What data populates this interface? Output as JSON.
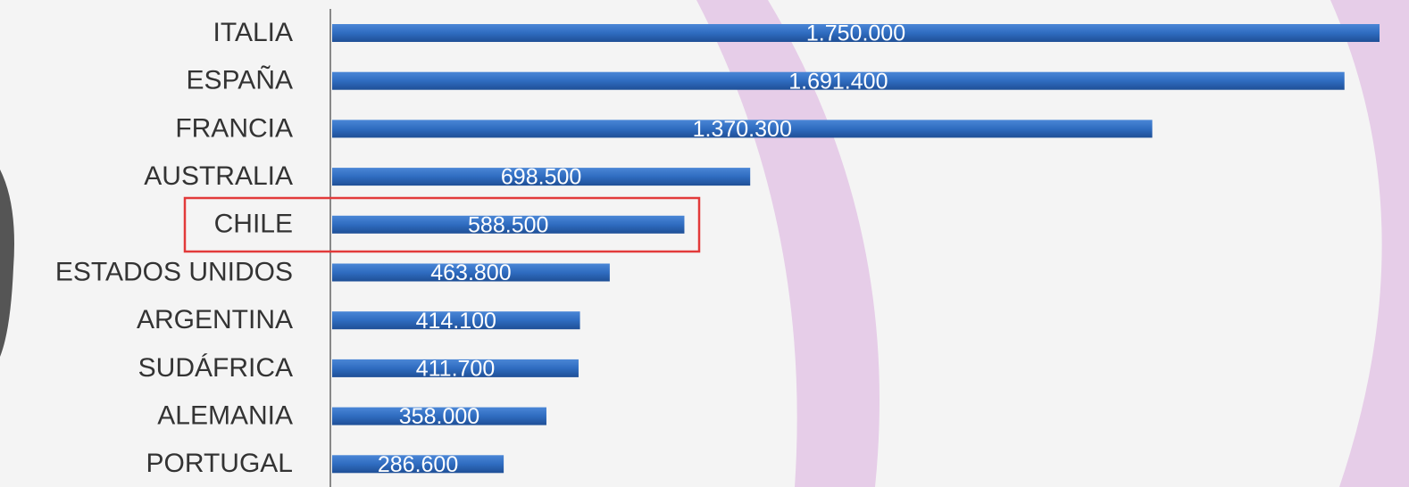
{
  "chart_data": {
    "type": "bar",
    "orientation": "horizontal",
    "color": "#2f6cc0",
    "categories": [
      "ITALIA",
      "ESPAÑA",
      "FRANCIA",
      "AUSTRALIA",
      "CHILE",
      "ESTADOS UNIDOS",
      "ARGENTINA",
      "SUDÁFRICA",
      "ALEMANIA",
      "PORTUGAL"
    ],
    "values": [
      1750000,
      1691400,
      1370300,
      698500,
      588500,
      463800,
      414100,
      411700,
      358000,
      286600
    ],
    "value_labels": [
      "1.750.000",
      "1.691.400",
      "1.370.300",
      "698.500",
      "588.500",
      "463.800",
      "414.100",
      "411.700",
      "358.000",
      "286.600"
    ]
  }
}
